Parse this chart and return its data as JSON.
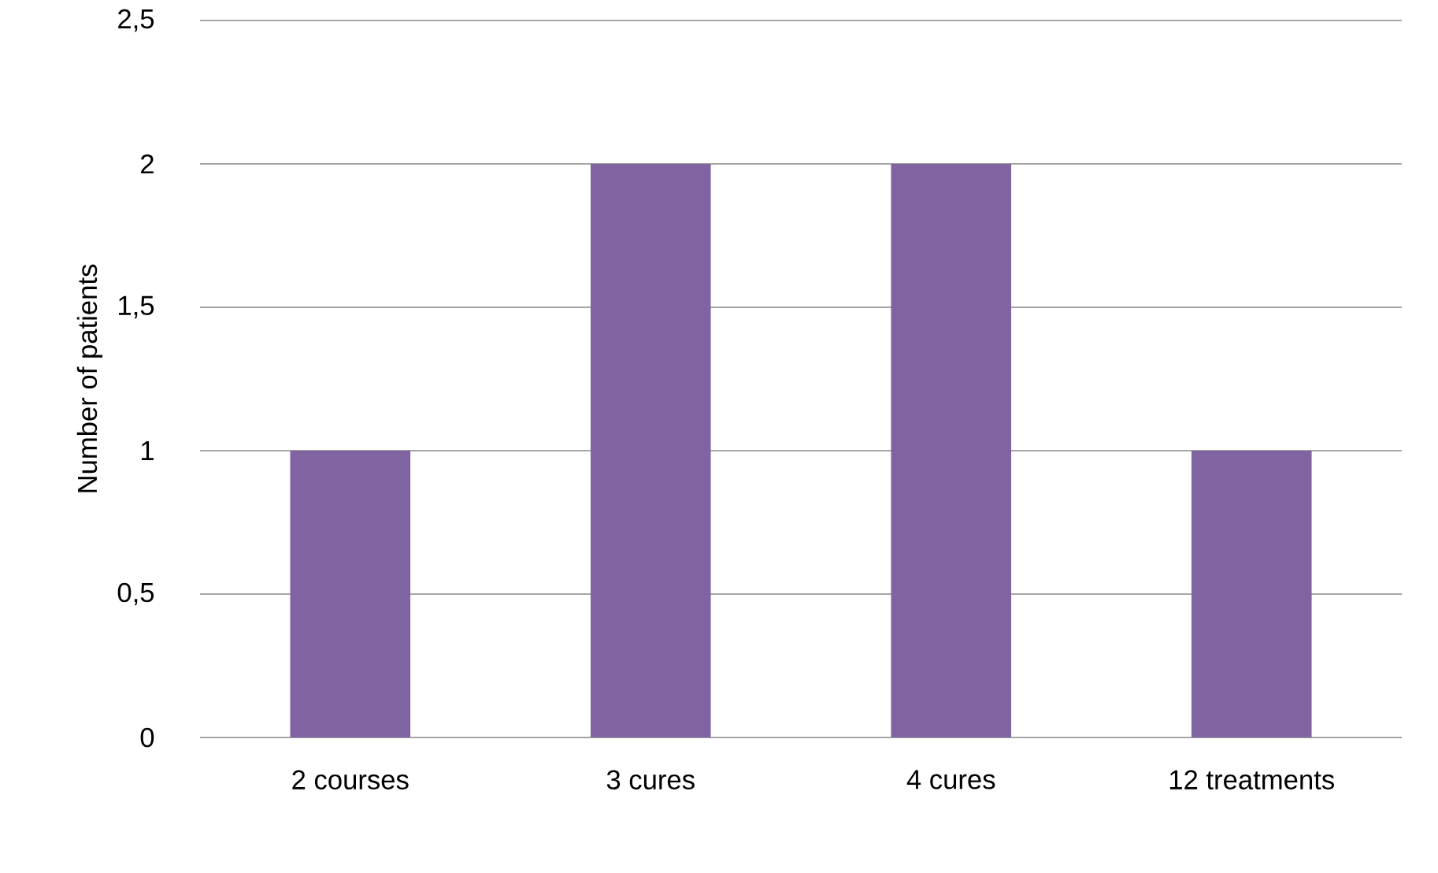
{
  "chart_data": {
    "type": "bar",
    "ylabel": "Number of patients",
    "categories": [
      "2 courses",
      "3 cures",
      "4 cures",
      "12 treatments"
    ],
    "values": [
      1,
      2,
      2,
      1
    ],
    "color": "#8064a2",
    "ylim": [
      0,
      2.5
    ],
    "yticks": [
      0,
      {
        "value": 0.5,
        "label": "0,5"
      },
      1,
      {
        "value": 1.5,
        "label": "1,5"
      },
      2,
      {
        "value": 2.5,
        "label": "2,5"
      }
    ],
    "grid": "y"
  }
}
